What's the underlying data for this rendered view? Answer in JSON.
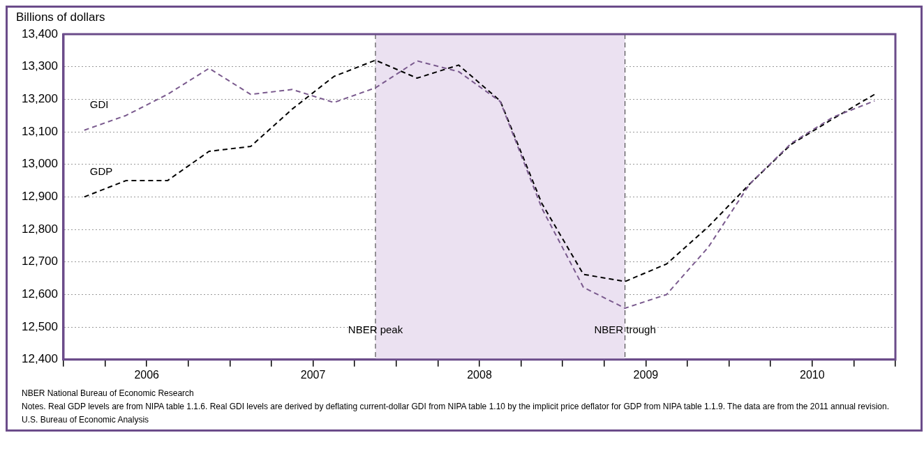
{
  "chart_data": {
    "type": "line",
    "ylabel": "Billions of dollars",
    "x": [
      2006.125,
      2006.375,
      2006.625,
      2006.875,
      2007.125,
      2007.375,
      2007.625,
      2007.875,
      2008.125,
      2008.375,
      2008.625,
      2008.875,
      2009.125,
      2009.375,
      2009.625,
      2009.875,
      2010.125,
      2010.375,
      2010.625,
      2010.875
    ],
    "series": [
      {
        "name": "GDI",
        "color": "#7a5a8e",
        "values": [
          13105,
          13150,
          13215,
          13295,
          13215,
          13230,
          13190,
          13235,
          13318,
          13285,
          13193,
          12865,
          12622,
          12558,
          12600,
          12745,
          12940,
          13065,
          13145,
          13195
        ]
      },
      {
        "name": "GDP",
        "color": "#000000",
        "values": [
          12900,
          12950,
          12950,
          13040,
          13055,
          13170,
          13270,
          13320,
          13265,
          13305,
          13195,
          12880,
          12662,
          12640,
          12694,
          12808,
          12940,
          13062,
          13140,
          13215
        ]
      }
    ],
    "xlim": [
      2006,
      2011
    ],
    "xticks": [
      {
        "value": 2006,
        "label": null
      },
      {
        "value": 2006.25,
        "label": null
      },
      {
        "value": 2006.5,
        "label": "2006"
      },
      {
        "value": 2006.75,
        "label": null
      },
      {
        "value": 2007,
        "label": null
      },
      {
        "value": 2007.25,
        "label": null
      },
      {
        "value": 2007.5,
        "label": "2007"
      },
      {
        "value": 2007.75,
        "label": null
      },
      {
        "value": 2008,
        "label": null
      },
      {
        "value": 2008.25,
        "label": null
      },
      {
        "value": 2008.5,
        "label": "2008"
      },
      {
        "value": 2008.75,
        "label": null
      },
      {
        "value": 2009,
        "label": null
      },
      {
        "value": 2009.25,
        "label": null
      },
      {
        "value": 2009.5,
        "label": "2009"
      },
      {
        "value": 2009.75,
        "label": null
      },
      {
        "value": 2010,
        "label": null
      },
      {
        "value": 2010.25,
        "label": null
      },
      {
        "value": 2010.5,
        "label": "2010"
      },
      {
        "value": 2010.75,
        "label": null
      },
      {
        "value": 2011,
        "label": null
      }
    ],
    "ylim": [
      12400,
      13400
    ],
    "yticks": [
      {
        "value": 12400,
        "label": "12,400"
      },
      {
        "value": 12500,
        "label": "12,500"
      },
      {
        "value": 12600,
        "label": "12,600"
      },
      {
        "value": 12700,
        "label": "12,700"
      },
      {
        "value": 12800,
        "label": "12,800"
      },
      {
        "value": 12900,
        "label": "12,900"
      },
      {
        "value": 13000,
        "label": "13,000"
      },
      {
        "value": 13100,
        "label": "13,100"
      },
      {
        "value": 13200,
        "label": "13,200"
      },
      {
        "value": 13300,
        "label": "13,300"
      },
      {
        "value": 13400,
        "label": "13,400"
      }
    ],
    "bands": [
      {
        "axis": "x",
        "from": 2007.875,
        "to": 2009.375,
        "color": "#ebe1f1"
      }
    ],
    "ref_lines": [
      {
        "axis": "x",
        "value": 2007.875,
        "label": "NBER peak",
        "line_style": "dashed"
      },
      {
        "axis": "x",
        "value": 2009.375,
        "label": "NBER trough",
        "line_style": "dashed"
      }
    ],
    "grid": "y",
    "legend": false,
    "marker": "none",
    "line_style": "dashed",
    "annotations": [
      "NBER National Bureau of Economic Research",
      "Notes. Real GDP levels are from NIPA table 1.1.6. Real GDI levels are derived by deflating current-dollar GDI from NIPA table 1.10 by the implicit price deflator for GDP from NIPA table 1.1.9. The data are from the 2011 annual revision.",
      "U.S. Bureau of Economic Analysis"
    ]
  }
}
